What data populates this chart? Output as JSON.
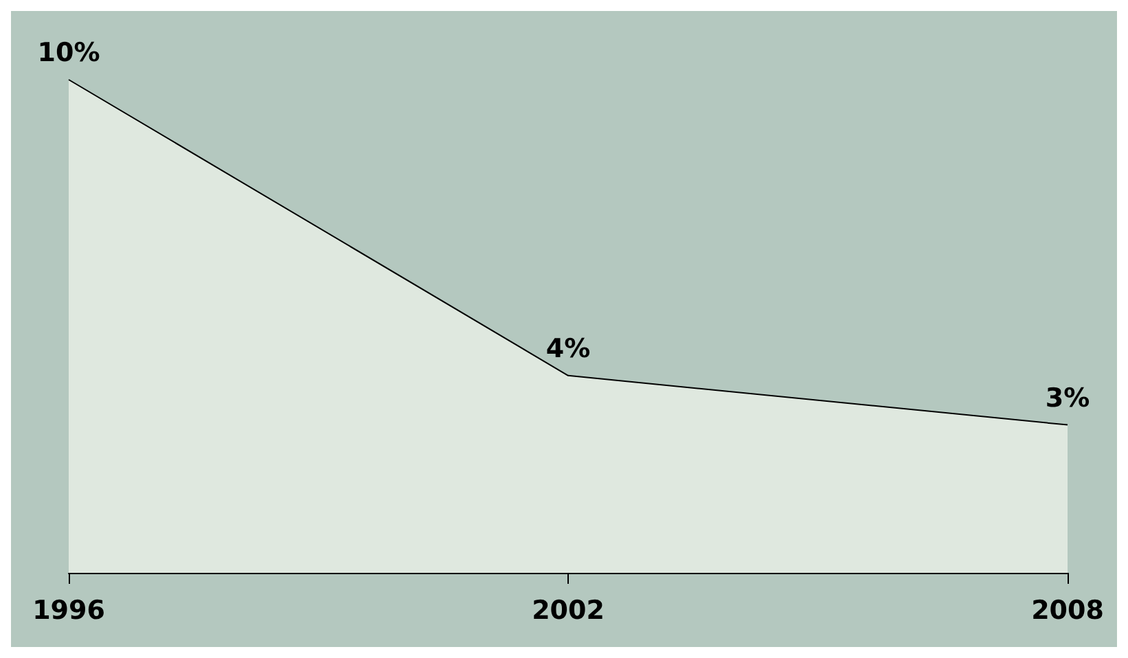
{
  "chart_data": {
    "type": "area",
    "categories": [
      "1996",
      "2002",
      "2008"
    ],
    "series": [
      {
        "color": "#dfe8df",
        "values": [
          10,
          4,
          3
        ],
        "value_labels": [
          "10%",
          "4%",
          "3%"
        ]
      }
    ],
    "grid": false,
    "marker": "none",
    "line_style": "solid",
    "tick_labels": "x"
  }
}
